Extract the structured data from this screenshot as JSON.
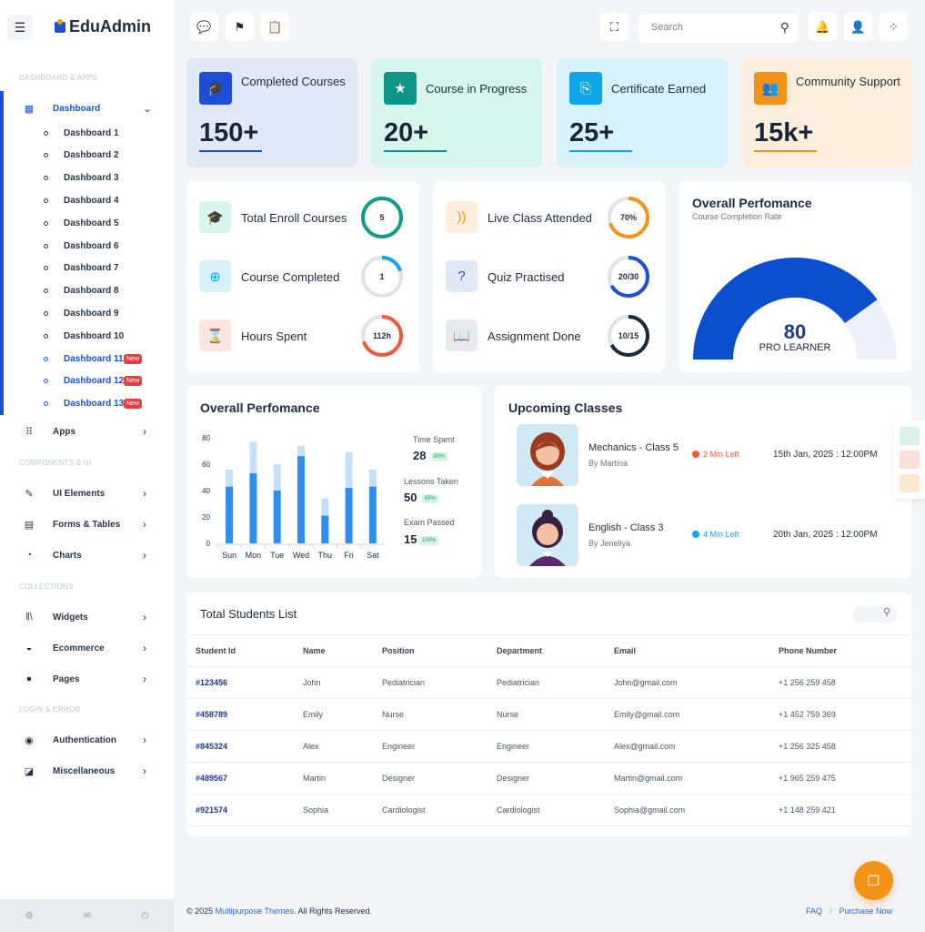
{
  "brand": {
    "name": "EduAdmin"
  },
  "sidebar": {
    "sections": [
      "DASHBOARD & APPS",
      "COMPONENTS & UI",
      "COLLECTIONS",
      "LOGIN & ERROR"
    ],
    "dashboard_label": "Dashboard",
    "dashboards": [
      "Dashboard 1",
      "Dashboard 2",
      "Dashboard 3",
      "Dashboard 4",
      "Dashboard 5",
      "Dashboard 6",
      "Dashboard 7",
      "Dashboard 8",
      "Dashboard 9",
      "Dashboard 10",
      "Dashboard 11",
      "Dashboard 12",
      "Dashboard 13"
    ],
    "new_badge": "New",
    "items": [
      "Apps",
      "UI Elements",
      "Forms & Tables",
      "Charts",
      "Widgets",
      "Ecommerce",
      "Pages",
      "Authentication",
      "Miscellaneous"
    ]
  },
  "header": {
    "search_placeholder": "Search"
  },
  "stats": [
    {
      "title": "Completed Courses",
      "value": "150+",
      "color": "#1d4ed8",
      "bg": "#e1e8f8"
    },
    {
      "title": "Course in Progress",
      "value": "20+",
      "color": "#0f9488",
      "bg": "#d6f5ec"
    },
    {
      "title": "Certificate Earned",
      "value": "25+",
      "color": "#0ea5e9",
      "bg": "#d8f2fc"
    },
    {
      "title": "Community Support",
      "value": "15k+",
      "color": "#f59318",
      "bg": "#fdeedd"
    }
  ],
  "progress_left": [
    {
      "label": "Total Enroll Courses",
      "value": "5",
      "fraction": 1.0,
      "color": "#119a86"
    },
    {
      "label": "Course Completed",
      "value": "1",
      "fraction": 0.2,
      "color": "#0ea5e9"
    },
    {
      "label": "Hours Spent",
      "value": "112h",
      "fraction": 0.7,
      "color": "#ef5a3a"
    }
  ],
  "progress_right": [
    {
      "label": "Live Class Attended",
      "value": "70%",
      "fraction": 0.7,
      "color": "#f59318"
    },
    {
      "label": "Quiz Practised",
      "value": "20/30",
      "fraction": 0.67,
      "color": "#1d4ed8"
    },
    {
      "label": "Assignment Done",
      "value": "10/15",
      "fraction": 0.67,
      "color": "#1e2a3b"
    }
  ],
  "gauge": {
    "title": "Overall Perfomance",
    "subtitle": "Course Completion Rate",
    "value": "80",
    "fraction": 0.8,
    "label": "PRO LEARNER"
  },
  "performance": {
    "title": "Overall Perfomance",
    "metrics": [
      {
        "label": "Time Spent",
        "value": "28",
        "badge": "85%"
      },
      {
        "label": "Lessons Taken",
        "value": "50",
        "badge": "65%"
      },
      {
        "label": "Exam Passed",
        "value": "15",
        "badge": "100%"
      }
    ]
  },
  "chart_data": {
    "type": "bar",
    "categories": [
      "Sun",
      "Mon",
      "Tue",
      "Wed",
      "Thu",
      "Fri",
      "Sat"
    ],
    "series": [
      {
        "values": [
          43,
          53,
          40,
          66,
          21,
          42,
          43
        ]
      },
      {
        "values": [
          56,
          77,
          60,
          74,
          34,
          69,
          56
        ]
      }
    ],
    "ylim": [
      0,
      80
    ],
    "yticks": [
      0,
      20,
      40,
      60,
      80
    ]
  },
  "classes": {
    "title": "Upcoming Classes",
    "items": [
      {
        "name": "Mechanics - Class 5",
        "by": "By Martina",
        "status": "2 Min Left",
        "status_color": "#ef5a3a",
        "date": "15th Jan, 2025 : 12:00PM"
      },
      {
        "name": "English - Class 3",
        "by": "By Jeneliya",
        "status": "4 Min Left",
        "status_color": "#0ea5e9",
        "date": "20th Jan, 2025 : 12:00PM"
      }
    ]
  },
  "students": {
    "title": "Total Students List",
    "columns": [
      "Student Id",
      "Name",
      "Position",
      "Department",
      "Email",
      "Phone Number"
    ],
    "rows": [
      [
        "#123456",
        "John",
        "Pediatrician",
        "Pediatrician",
        "John@gmail.com",
        "+1 256 259 458"
      ],
      [
        "#458789",
        "Emily",
        "Nurse",
        "Nurse",
        "Emily@gmail.com",
        "+1 452 759 369"
      ],
      [
        "#845324",
        "Alex",
        "Engineer",
        "Engineer",
        "Alex@gmail.com",
        "+1 256 325 458"
      ],
      [
        "#489567",
        "Martin",
        "Designer",
        "Designer",
        "Martin@gmail.com",
        "+1 965 259 475"
      ],
      [
        "#921574",
        "Sophia",
        "Cardiologist",
        "Cardiologist",
        "Sophia@gmail.com",
        "+1 148 259 421"
      ]
    ]
  },
  "footer": {
    "copyright_prefix": "© 2025 ",
    "company": "Multipurpose Themes",
    "copyright_suffix": ". All Rights Reserved.",
    "faq": "FAQ",
    "separator": "/",
    "purchase": "Purchase Now"
  }
}
